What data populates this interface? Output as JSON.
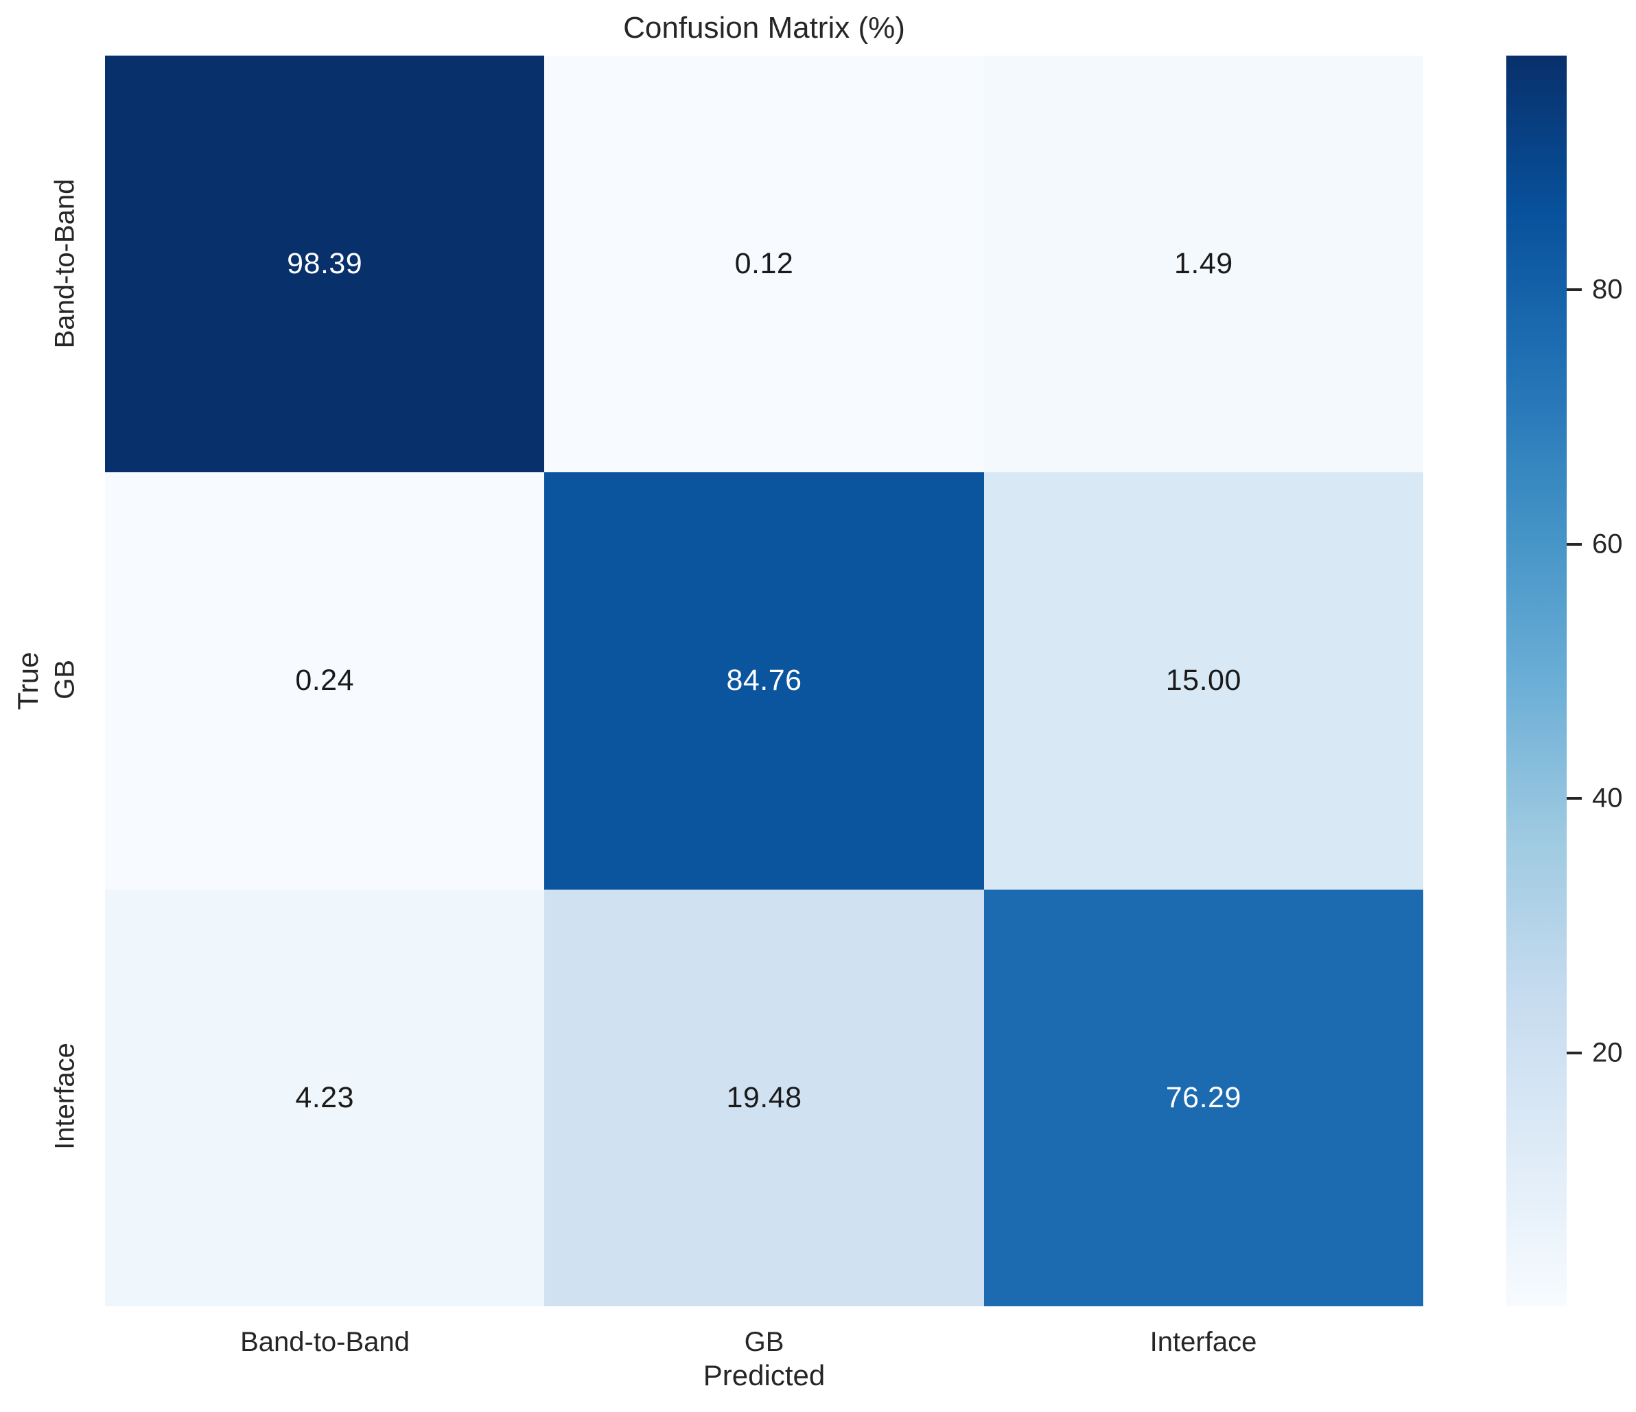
{
  "figure": {
    "title": "Confusion Matrix (%)",
    "xlabel": "Predicted",
    "ylabel": "True",
    "x_tick_labels": [
      "Band-to-Band",
      "GB",
      "Interface"
    ],
    "y_tick_labels": [
      "Band-to-Band",
      "GB",
      "Interface"
    ],
    "colorbar_tick_labels": [
      "80",
      "60",
      "40",
      "20"
    ]
  },
  "chart_data": {
    "type": "heatmap",
    "title": "Confusion Matrix (%)",
    "xlabel": "Predicted",
    "ylabel": "True",
    "x_categories": [
      "Band-to-Band",
      "GB",
      "Interface"
    ],
    "y_categories": [
      "Band-to-Band",
      "GB",
      "Interface"
    ],
    "values_percent": [
      [
        98.39,
        0.12,
        1.49
      ],
      [
        0.24,
        84.76,
        15.0
      ],
      [
        4.23,
        19.48,
        76.29
      ]
    ],
    "colormap": "Blues",
    "color_scale_min": 0.12,
    "color_scale_max": 98.39,
    "colorbar_ticks": [
      20,
      40,
      60,
      80
    ],
    "colorbar_position": "right",
    "grid": false,
    "annotations_shown": true
  },
  "cells": [
    {
      "row": "Band-to-Band",
      "col": "Band-to-Band",
      "label": "98.39",
      "bg": "#08306b",
      "fg": "#ffffff"
    },
    {
      "row": "Band-to-Band",
      "col": "GB",
      "label": "0.12",
      "bg": "#f7fbff",
      "fg": "#1a1a1a"
    },
    {
      "row": "Band-to-Band",
      "col": "Interface",
      "label": "1.49",
      "bg": "#f4f9fe",
      "fg": "#1a1a1a"
    },
    {
      "row": "GB",
      "col": "Band-to-Band",
      "label": "0.24",
      "bg": "#f7fbff",
      "fg": "#1a1a1a"
    },
    {
      "row": "GB",
      "col": "GB",
      "label": "84.76",
      "bg": "#0b559f",
      "fg": "#ffffff"
    },
    {
      "row": "GB",
      "col": "Interface",
      "label": "15.00",
      "bg": "#d9e8f5",
      "fg": "#1a1a1a"
    },
    {
      "row": "Interface",
      "col": "Band-to-Band",
      "label": "4.23",
      "bg": "#eff6fc",
      "fg": "#1a1a1a"
    },
    {
      "row": "Interface",
      "col": "GB",
      "label": "19.48",
      "bg": "#d0e2f2",
      "fg": "#1a1a1a"
    },
    {
      "row": "Interface",
      "col": "Interface",
      "label": "76.29",
      "bg": "#1c6bb0",
      "fg": "#ffffff"
    }
  ],
  "colors": {
    "text": "#262626",
    "annotation_light": "#ffffff",
    "annotation_dark": "#1a1a1a",
    "colormap_low": "#f7fbff",
    "colormap_high": "#08306b",
    "background": "#ffffff"
  }
}
